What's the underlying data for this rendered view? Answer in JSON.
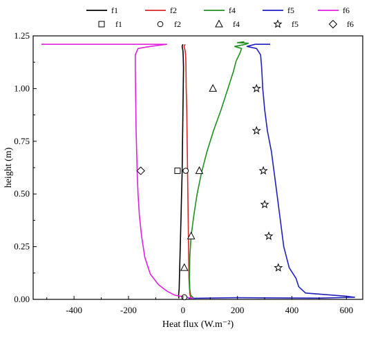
{
  "chart_data": {
    "type": "line",
    "xlabel": "Heat flux (W.m⁻²)",
    "ylabel": "height (m)",
    "xlim": [
      -550,
      660
    ],
    "ylim": [
      0,
      1.25
    ],
    "xticks": [
      -400,
      -200,
      0,
      200,
      400,
      600
    ],
    "xtick_labels": [
      "-400",
      "-200",
      "0",
      "200",
      "400",
      "600"
    ],
    "yticks": [
      0,
      0.25,
      0.5,
      0.75,
      1.0,
      1.25
    ],
    "ytick_labels": [
      "0.00",
      "0.25",
      "0.50",
      "0.75",
      "1.00",
      "1.25"
    ],
    "grid": false,
    "legend_position": "top",
    "line_series": [
      {
        "name": "f1",
        "color": "#000000",
        "points": [
          [
            -15,
            0.005
          ],
          [
            -16,
            0.02
          ],
          [
            -14,
            0.05
          ],
          [
            -13,
            0.1
          ],
          [
            -11,
            0.2
          ],
          [
            -9,
            0.3
          ],
          [
            -7,
            0.4
          ],
          [
            -5,
            0.5
          ],
          [
            -3,
            0.6
          ],
          [
            -2,
            0.7
          ],
          [
            -1,
            0.8
          ],
          [
            0,
            0.9
          ],
          [
            1,
            1.0
          ],
          [
            2,
            1.1
          ],
          [
            1,
            1.15
          ],
          [
            0,
            1.18
          ],
          [
            -3,
            1.2
          ],
          [
            0,
            1.21
          ]
        ]
      },
      {
        "name": "f2",
        "color": "#d62728",
        "points": [
          [
            30,
            0.005
          ],
          [
            26,
            0.02
          ],
          [
            24,
            0.05
          ],
          [
            22,
            0.1
          ],
          [
            21,
            0.2
          ],
          [
            20,
            0.3
          ],
          [
            19,
            0.4
          ],
          [
            18,
            0.5
          ],
          [
            17,
            0.6
          ],
          [
            16,
            0.7
          ],
          [
            15,
            0.8
          ],
          [
            14,
            0.9
          ],
          [
            12,
            1.0
          ],
          [
            11,
            1.1
          ],
          [
            10,
            1.15
          ],
          [
            8,
            1.18
          ],
          [
            4,
            1.2
          ],
          [
            8,
            1.21
          ]
        ]
      },
      {
        "name": "f4",
        "color": "#1f8f1f",
        "points": [
          [
            40,
            0.005
          ],
          [
            28,
            0.02
          ],
          [
            25,
            0.05
          ],
          [
            24,
            0.1
          ],
          [
            25,
            0.2
          ],
          [
            30,
            0.3
          ],
          [
            40,
            0.4
          ],
          [
            52,
            0.5
          ],
          [
            68,
            0.6
          ],
          [
            88,
            0.7
          ],
          [
            112,
            0.8
          ],
          [
            140,
            0.9
          ],
          [
            165,
            1.0
          ],
          [
            185,
            1.08
          ],
          [
            195,
            1.13
          ],
          [
            210,
            1.17
          ],
          [
            215,
            1.19
          ],
          [
            190,
            1.2
          ],
          [
            230,
            1.21
          ],
          [
            240,
            1.215
          ],
          [
            200,
            1.218
          ],
          [
            225,
            1.222
          ]
        ]
      },
      {
        "name": "f5",
        "color": "#1f1fbf",
        "points": [
          [
            20,
            0.005
          ],
          [
            200,
            0.008
          ],
          [
            500,
            0.006
          ],
          [
            630,
            0.01
          ],
          [
            600,
            0.015
          ],
          [
            450,
            0.03
          ],
          [
            425,
            0.06
          ],
          [
            415,
            0.1
          ],
          [
            390,
            0.15
          ],
          [
            370,
            0.25
          ],
          [
            355,
            0.4
          ],
          [
            340,
            0.55
          ],
          [
            325,
            0.7
          ],
          [
            310,
            0.8
          ],
          [
            300,
            0.9
          ],
          [
            293,
            1.0
          ],
          [
            289,
            1.1
          ],
          [
            285,
            1.16
          ],
          [
            270,
            1.19
          ],
          [
            235,
            1.2
          ],
          [
            265,
            1.21
          ],
          [
            320,
            1.21
          ]
        ]
      },
      {
        "name": "f6",
        "color": "#e020e0",
        "points": [
          [
            40,
            0.005
          ],
          [
            10,
            0.01
          ],
          [
            -30,
            0.02
          ],
          [
            -60,
            0.04
          ],
          [
            -90,
            0.07
          ],
          [
            -120,
            0.12
          ],
          [
            -140,
            0.2
          ],
          [
            -152,
            0.3
          ],
          [
            -160,
            0.4
          ],
          [
            -165,
            0.5
          ],
          [
            -168,
            0.6
          ],
          [
            -170,
            0.7
          ],
          [
            -172,
            0.8
          ],
          [
            -173,
            0.9
          ],
          [
            -174,
            1.0
          ],
          [
            -175,
            1.1
          ],
          [
            -175,
            1.16
          ],
          [
            -165,
            1.19
          ],
          [
            -120,
            1.2
          ],
          [
            -60,
            1.21
          ],
          [
            -100,
            1.21
          ],
          [
            -520,
            1.21
          ]
        ]
      }
    ],
    "marker_series": [
      {
        "name": "f1",
        "marker": "square",
        "points": [
          [
            -20,
            0.61
          ]
        ]
      },
      {
        "name": "f2",
        "marker": "circle",
        "points": [
          [
            10,
            0.61
          ],
          [
            5,
            0.01
          ]
        ]
      },
      {
        "name": "f4",
        "marker": "triangle",
        "points": [
          [
            110,
            1.0
          ],
          [
            60,
            0.61
          ],
          [
            30,
            0.3
          ],
          [
            5,
            0.15
          ]
        ]
      },
      {
        "name": "f5",
        "marker": "star",
        "points": [
          [
            270,
            1.0
          ],
          [
            270,
            0.8
          ],
          [
            295,
            0.61
          ],
          [
            300,
            0.45
          ],
          [
            315,
            0.3
          ],
          [
            350,
            0.15
          ]
        ]
      },
      {
        "name": "f6",
        "marker": "diamond",
        "points": [
          [
            -155,
            0.61
          ]
        ]
      }
    ]
  }
}
